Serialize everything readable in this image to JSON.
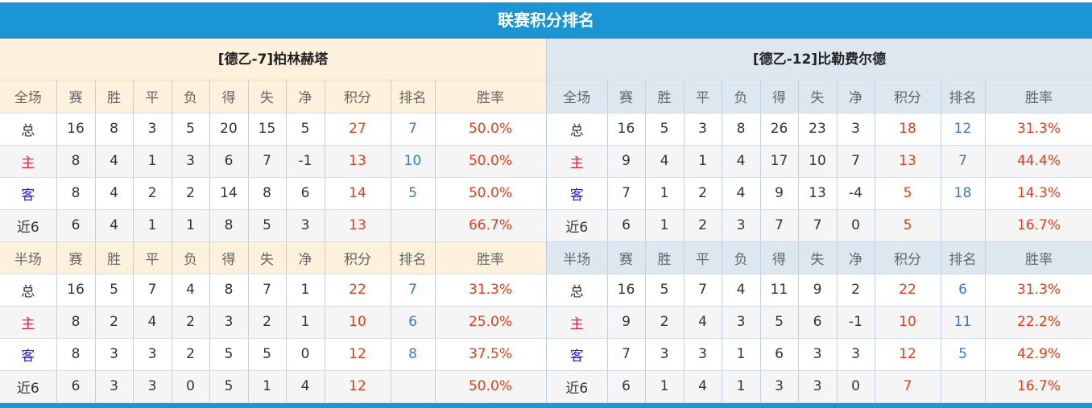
{
  "title": "联赛积分排名",
  "colors": {
    "accent": "#1a96d4",
    "points": "#ee3a12",
    "rank": "#2f7ec6",
    "home": "#e3233a",
    "away": "#2222dd"
  },
  "columns": [
    "赛",
    "胜",
    "平",
    "负",
    "得",
    "失",
    "净",
    "积分",
    "排名",
    "胜率"
  ],
  "teams": [
    {
      "name": "[德乙-7]柏林赫塔",
      "sections": [
        {
          "label": "全场",
          "rows": [
            [
              "总",
              "16",
              "8",
              "3",
              "5",
              "20",
              "15",
              "5",
              "27",
              "7",
              "50.0%"
            ],
            [
              "主",
              "8",
              "4",
              "1",
              "3",
              "6",
              "7",
              "-1",
              "13",
              "10",
              "50.0%"
            ],
            [
              "客",
              "8",
              "4",
              "2",
              "2",
              "14",
              "8",
              "6",
              "14",
              "5",
              "50.0%"
            ],
            [
              "近6",
              "6",
              "4",
              "1",
              "1",
              "8",
              "5",
              "3",
              "13",
              "",
              "66.7%"
            ]
          ]
        },
        {
          "label": "半场",
          "rows": [
            [
              "总",
              "16",
              "5",
              "7",
              "4",
              "8",
              "7",
              "1",
              "22",
              "7",
              "31.3%"
            ],
            [
              "主",
              "8",
              "2",
              "4",
              "2",
              "3",
              "2",
              "1",
              "10",
              "6",
              "25.0%"
            ],
            [
              "客",
              "8",
              "3",
              "3",
              "2",
              "5",
              "5",
              "0",
              "12",
              "8",
              "37.5%"
            ],
            [
              "近6",
              "6",
              "3",
              "3",
              "0",
              "5",
              "1",
              "4",
              "12",
              "",
              "50.0%"
            ]
          ]
        }
      ]
    },
    {
      "name": "[德乙-12]比勒费尔德",
      "sections": [
        {
          "label": "全场",
          "rows": [
            [
              "总",
              "16",
              "5",
              "3",
              "8",
              "26",
              "23",
              "3",
              "18",
              "12",
              "31.3%"
            ],
            [
              "主",
              "9",
              "4",
              "1",
              "4",
              "17",
              "10",
              "7",
              "13",
              "7",
              "44.4%"
            ],
            [
              "客",
              "7",
              "1",
              "2",
              "4",
              "9",
              "13",
              "-4",
              "5",
              "18",
              "14.3%"
            ],
            [
              "近6",
              "6",
              "1",
              "2",
              "3",
              "7",
              "7",
              "0",
              "5",
              "",
              "16.7%"
            ]
          ]
        },
        {
          "label": "半场",
          "rows": [
            [
              "总",
              "16",
              "5",
              "7",
              "4",
              "11",
              "9",
              "2",
              "22",
              "6",
              "31.3%"
            ],
            [
              "主",
              "9",
              "2",
              "4",
              "3",
              "5",
              "6",
              "-1",
              "10",
              "11",
              "22.2%"
            ],
            [
              "客",
              "7",
              "3",
              "3",
              "1",
              "6",
              "3",
              "3",
              "12",
              "5",
              "42.9%"
            ],
            [
              "近6",
              "6",
              "1",
              "4",
              "1",
              "3",
              "3",
              "0",
              "7",
              "",
              "16.7%"
            ]
          ]
        }
      ]
    }
  ]
}
